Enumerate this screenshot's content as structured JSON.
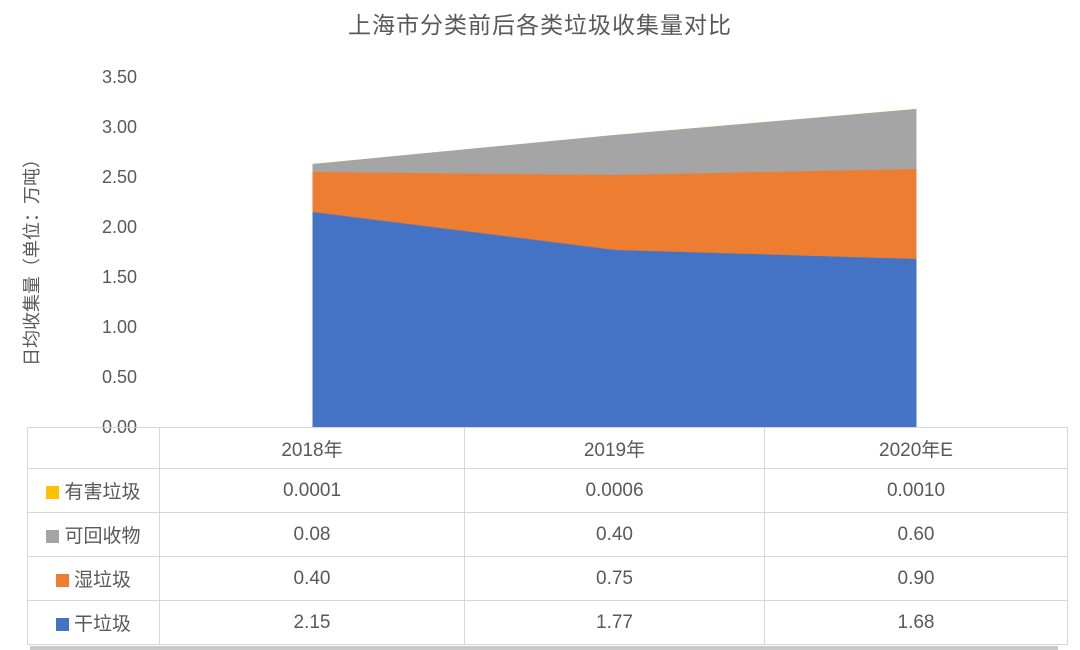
{
  "title": "上海市分类前后各类垃圾收集量对比",
  "y_axis": {
    "label": "日均收集量（单位：万吨）",
    "ticks": [
      "3.50",
      "3.00",
      "2.50",
      "2.00",
      "1.50",
      "1.00",
      "0.50",
      "0.00"
    ]
  },
  "table": {
    "headers": [
      "2018年",
      "2019年",
      "2020年E"
    ],
    "rows": [
      {
        "label": "有害垃圾",
        "color": "#FFC000",
        "values": [
          "0.0001",
          "0.0006",
          "0.0010"
        ]
      },
      {
        "label": "可回收物",
        "color": "#A5A5A5",
        "values": [
          "0.08",
          "0.40",
          "0.60"
        ]
      },
      {
        "label": "湿垃圾",
        "color": "#ED7D31",
        "values": [
          "0.40",
          "0.75",
          "0.90"
        ]
      },
      {
        "label": "干垃圾",
        "color": "#4472C4",
        "values": [
          "2.15",
          "1.77",
          "1.68"
        ]
      }
    ]
  },
  "chart_data": {
    "type": "area",
    "stacked": true,
    "title": "上海市分类前后各类垃圾收集量对比",
    "categories": [
      "2018年",
      "2019年",
      "2020年E"
    ],
    "series": [
      {
        "name": "有害垃圾",
        "color": "#FFC000",
        "values": [
          0.0001,
          0.0006,
          0.001
        ]
      },
      {
        "name": "可回收物",
        "color": "#A5A5A5",
        "values": [
          0.08,
          0.4,
          0.6
        ]
      },
      {
        "name": "湿垃圾",
        "color": "#ED7D31",
        "values": [
          0.4,
          0.75,
          0.9
        ]
      },
      {
        "name": "干垃圾",
        "color": "#4472C4",
        "values": [
          2.15,
          1.77,
          1.68
        ]
      }
    ],
    "stack_order_bottom_to_top": [
      "干垃圾",
      "湿垃圾",
      "可回收物",
      "有害垃圾"
    ],
    "ylabel": "日均收集量（单位：万吨）",
    "ylim": [
      0,
      3.5
    ],
    "ytick_step": 0.5,
    "grid": false,
    "legend_position": "table-rows-left"
  },
  "theme": {
    "text_color": "#595959",
    "border_color": "#D6D6D6",
    "shadow_color": "#C9C9C9",
    "background": "#FFFFFF"
  }
}
